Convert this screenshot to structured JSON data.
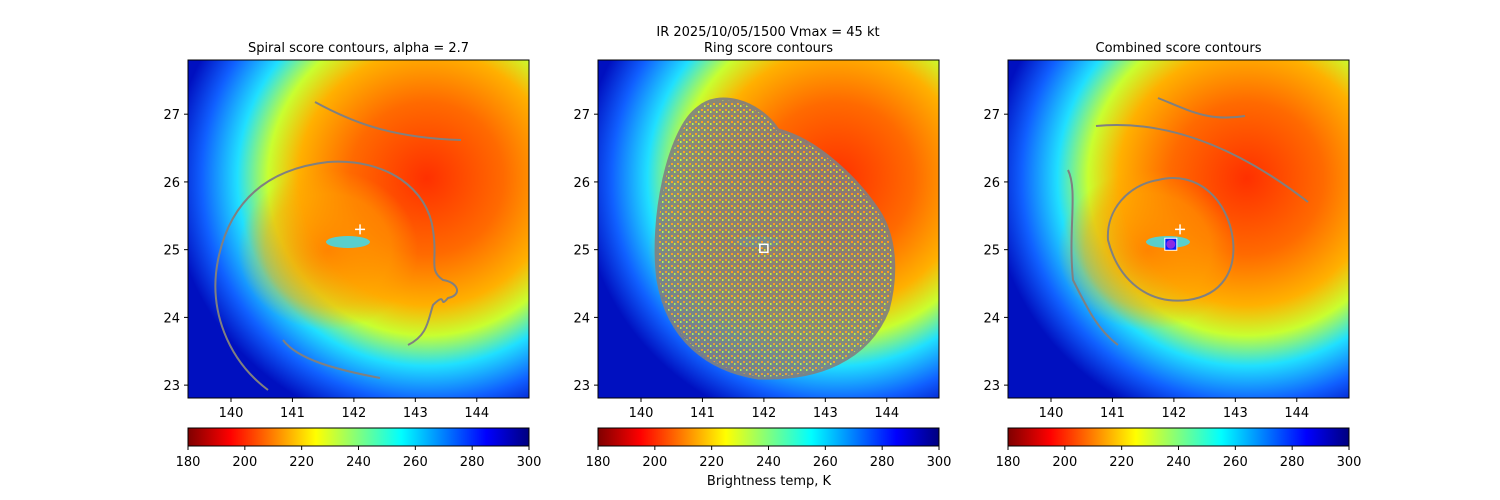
{
  "chart_data": {
    "type": "heatmap",
    "suptitle": "IR  2025/10/05/1500    Vmax = 45 kt",
    "xlim": [
      139.3,
      144.85
    ],
    "ylim": [
      22.81,
      27.8
    ],
    "xticks": [
      140,
      141,
      142,
      143,
      144
    ],
    "yticks": [
      23,
      24,
      25,
      26,
      27
    ],
    "colorbar": {
      "label": "Brightness temp, K",
      "range": [
        180,
        300
      ],
      "ticks": [
        180,
        200,
        220,
        240,
        260,
        280,
        300
      ],
      "colormap": "jet_r",
      "colors": [
        "#7f0000",
        "#ff0000",
        "#ffff00",
        "#7fff7f",
        "#00ffff",
        "#0000ff",
        "#00007f"
      ]
    },
    "contour_color": "#808080",
    "panels": [
      {
        "title": "Spiral score contours, alpha =  2.7",
        "markers": [
          {
            "type": "plus",
            "lon": 142.1,
            "lat": 25.3,
            "color": "#ffffff"
          }
        ]
      },
      {
        "title": "Ring score contours",
        "markers": [
          {
            "type": "square",
            "lon": 142.0,
            "lat": 25.02,
            "color": "#ffffff"
          }
        ]
      },
      {
        "title": "Combined score contours",
        "markers": [
          {
            "type": "plus",
            "lon": 142.1,
            "lat": 25.3,
            "color": "#ffffff"
          },
          {
            "type": "circle",
            "lon": 141.95,
            "lat": 25.08,
            "color": "#8a2be2"
          }
        ]
      }
    ]
  }
}
